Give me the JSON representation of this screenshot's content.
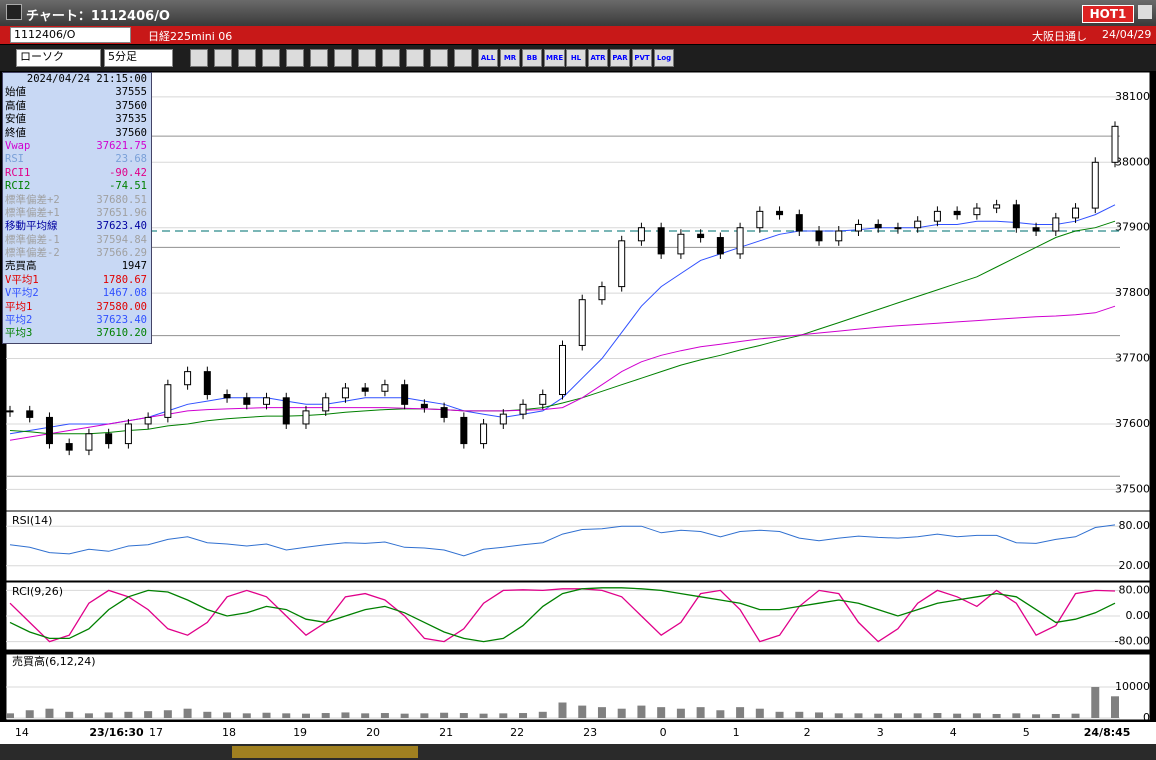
{
  "window": {
    "title": "チャート：1112406/O",
    "hot": "HOT1",
    "symbol": "1112406/O",
    "name": "日経225mini 06",
    "session": "大阪日通し",
    "date": "24/04/29",
    "chart_kind": "ローソク",
    "interval": "5分足",
    "tools": [
      "ALL",
      "MR",
      "BB",
      "MRE",
      "HL",
      "ATR",
      "PAR",
      "PVT",
      "Log"
    ]
  },
  "info_panel": {
    "datetime": "2024/04/24  21:15:00",
    "rows": [
      {
        "label": "始値",
        "value": "37555",
        "color": "#000000"
      },
      {
        "label": "高値",
        "value": "37560",
        "color": "#000000"
      },
      {
        "label": "安値",
        "value": "37535",
        "color": "#000000"
      },
      {
        "label": "終値",
        "value": "37560",
        "color": "#000000"
      },
      {
        "label": "Vwap",
        "value": "37621.75",
        "color": "#d000d0"
      },
      {
        "label": "RSI",
        "value": "23.68",
        "color": "#7aa0d8"
      },
      {
        "label": "RCI1",
        "value": "-90.42",
        "color": "#e0008a"
      },
      {
        "label": "RCI2",
        "value": "-74.51",
        "color": "#008000"
      },
      {
        "label": "標準偏差+2",
        "value": "37680.51",
        "color": "#a0a0a0"
      },
      {
        "label": "標準偏差+1",
        "value": "37651.96",
        "color": "#a0a0a0"
      },
      {
        "label": "移動平均線",
        "value": "37623.40",
        "color": "#0000a0"
      },
      {
        "label": "標準偏差-1",
        "value": "37594.84",
        "color": "#a0a0a0"
      },
      {
        "label": "標準偏差-2",
        "value": "37566.29",
        "color": "#a0a0a0"
      },
      {
        "label": "売買高",
        "value": "1947",
        "color": "#000000"
      },
      {
        "label": "V平均1",
        "value": "1780.67",
        "color": "#e00000"
      },
      {
        "label": "V平均2",
        "value": "1467.08",
        "color": "#3050ff"
      },
      {
        "label": "平均1",
        "value": "37580.00",
        "color": "#e00000"
      },
      {
        "label": "平均2",
        "value": "37623.40",
        "color": "#3050ff"
      },
      {
        "label": "平均3",
        "value": "37610.20",
        "color": "#008000"
      }
    ]
  },
  "chart_data": {
    "type": "candlestick",
    "xticks": [
      {
        "value": 0.6,
        "label": "14"
      },
      {
        "value": 5.4,
        "label": "23/16:30"
      },
      {
        "value": 7.4,
        "label": "17"
      },
      {
        "value": 11.1,
        "label": "18"
      },
      {
        "value": 14.7,
        "label": "19"
      },
      {
        "value": 18.4,
        "label": "20"
      },
      {
        "value": 22.1,
        "label": "21"
      },
      {
        "value": 25.7,
        "label": "22"
      },
      {
        "value": 29.4,
        "label": "23"
      },
      {
        "value": 33.1,
        "label": "0"
      },
      {
        "value": 36.8,
        "label": "1"
      },
      {
        "value": 40.4,
        "label": "2"
      },
      {
        "value": 44.1,
        "label": "3"
      },
      {
        "value": 47.8,
        "label": "4"
      },
      {
        "value": 51.5,
        "label": "5"
      },
      {
        "value": 55.6,
        "label": "24/8:45"
      }
    ],
    "ylim": [
      37470,
      38135
    ],
    "yticks": [
      37500,
      37600,
      37700,
      37800,
      37900,
      38000,
      38100
    ],
    "close": [
      37620,
      37610,
      37570,
      37560,
      37585,
      37570,
      37600,
      37610,
      37660,
      37680,
      37645,
      37640,
      37630,
      37640,
      37600,
      37620,
      37640,
      37655,
      37650,
      37660,
      37630,
      37625,
      37610,
      37570,
      37600,
      37615,
      37630,
      37645,
      37720,
      37790,
      37810,
      37880,
      37900,
      37860,
      37890,
      37885,
      37860,
      37900,
      37925,
      37920,
      37895,
      37880,
      37895,
      37905,
      37900,
      37900,
      37910,
      37925,
      37920,
      37930,
      37935,
      37900,
      37895,
      37915,
      37930,
      38000,
      38055
    ],
    "hlines": [
      {
        "value": 38040,
        "color": "#909090"
      },
      {
        "value": 37895,
        "color": "#2a8a8a",
        "dashed": true
      },
      {
        "value": 37870,
        "color": "#909090"
      },
      {
        "value": 37735,
        "color": "#909090"
      },
      {
        "value": 37520,
        "color": "#909090"
      }
    ],
    "series": [
      {
        "name": "平均2",
        "color": "#3050ff",
        "values": [
          37585,
          37590,
          37595,
          37600,
          37600,
          37600,
          37605,
          37610,
          37620,
          37630,
          37635,
          37640,
          37640,
          37640,
          37635,
          37630,
          37630,
          37635,
          37640,
          37640,
          37640,
          37635,
          37630,
          37620,
          37615,
          37610,
          37615,
          37620,
          37640,
          37670,
          37700,
          37740,
          37780,
          37810,
          37830,
          37850,
          37860,
          37870,
          37880,
          37890,
          37895,
          37895,
          37895,
          37897,
          37900,
          37900,
          37900,
          37905,
          37905,
          37910,
          37910,
          37908,
          37905,
          37905,
          37910,
          37920,
          37935
        ]
      },
      {
        "name": "平均3",
        "color": "#008000",
        "values": [
          37590,
          37588,
          37585,
          37585,
          37585,
          37587,
          37590,
          37592,
          37597,
          37600,
          37605,
          37608,
          37610,
          37612,
          37612,
          37613,
          37615,
          37618,
          37620,
          37622,
          37623,
          37623,
          37622,
          37620,
          37620,
          37620,
          37622,
          37625,
          37632,
          37640,
          37650,
          37660,
          37670,
          37680,
          37690,
          37698,
          37705,
          37713,
          37720,
          37728,
          37735,
          37745,
          37755,
          37765,
          37775,
          37785,
          37795,
          37805,
          37815,
          37825,
          37840,
          37855,
          37870,
          37885,
          37895,
          37900,
          37910
        ]
      },
      {
        "name": "Vwap",
        "color": "#d000d0",
        "values": [
          37575,
          37580,
          37585,
          37590,
          37595,
          37600,
          37605,
          37610,
          37615,
          37620,
          37622,
          37623,
          37624,
          37625,
          37625,
          37625,
          37625,
          37625,
          37625,
          37625,
          37624,
          37623,
          37622,
          37620,
          37620,
          37620,
          37621,
          37622,
          37625,
          37640,
          37660,
          37680,
          37695,
          37705,
          37712,
          37718,
          37722,
          37726,
          37730,
          37733,
          37736,
          37739,
          37742,
          37745,
          37748,
          37750,
          37752,
          37754,
          37756,
          37758,
          37760,
          37762,
          37764,
          37765,
          37767,
          37770,
          37780
        ]
      }
    ],
    "rsi": {
      "title": "RSI(14)",
      "ylim": [
        0,
        100
      ],
      "yticks": [
        {
          "value": 80,
          "label": "80.00"
        },
        {
          "value": 20,
          "label": "20.00"
        }
      ],
      "color": "#3070d0",
      "values": [
        52,
        48,
        40,
        38,
        45,
        42,
        50,
        52,
        60,
        64,
        55,
        53,
        50,
        53,
        44,
        48,
        52,
        55,
        54,
        56,
        48,
        47,
        44,
        35,
        45,
        48,
        52,
        55,
        68,
        75,
        76,
        80,
        80,
        70,
        74,
        72,
        64,
        72,
        74,
        72,
        62,
        58,
        62,
        65,
        63,
        62,
        64,
        68,
        64,
        66,
        66,
        55,
        54,
        60,
        64,
        78,
        82
      ]
    },
    "rci": {
      "title": "RCI(9,26)",
      "ylim": [
        -100,
        100
      ],
      "yticks": [
        {
          "value": 80,
          "label": "80.00"
        },
        {
          "value": 0,
          "label": "0.00"
        },
        {
          "value": -80,
          "label": "-80.00"
        }
      ],
      "series": [
        {
          "name": "RCI1",
          "color": "#e0008a",
          "values": [
            40,
            -20,
            -80,
            -60,
            40,
            80,
            60,
            20,
            -40,
            -60,
            -20,
            60,
            80,
            60,
            0,
            -60,
            -20,
            60,
            70,
            50,
            0,
            -70,
            -80,
            -40,
            40,
            80,
            82,
            80,
            85,
            85,
            80,
            60,
            0,
            -60,
            -20,
            70,
            80,
            20,
            -80,
            -60,
            30,
            80,
            70,
            -20,
            -80,
            -40,
            40,
            80,
            60,
            30,
            80,
            40,
            -60,
            -30,
            70,
            80,
            78
          ]
        },
        {
          "name": "RCI2",
          "color": "#008000",
          "values": [
            -20,
            -50,
            -70,
            -70,
            -40,
            20,
            60,
            80,
            75,
            50,
            20,
            0,
            10,
            30,
            20,
            -10,
            -20,
            0,
            20,
            30,
            10,
            -20,
            -50,
            -70,
            -80,
            -70,
            -30,
            30,
            70,
            85,
            88,
            88,
            85,
            80,
            70,
            60,
            50,
            40,
            20,
            20,
            30,
            40,
            50,
            40,
            20,
            0,
            20,
            40,
            50,
            60,
            70,
            60,
            20,
            -20,
            -10,
            10,
            40
          ]
        }
      ]
    },
    "volume": {
      "title": "売買高(6,12,24)",
      "ylim": [
        0,
        20000
      ],
      "yticks": [
        10000,
        0
      ],
      "color": "#808080",
      "values": [
        1500,
        2500,
        3000,
        2000,
        1500,
        1800,
        2000,
        2200,
        2500,
        3000,
        2000,
        1800,
        1500,
        1700,
        1500,
        1400,
        1600,
        1800,
        1500,
        1600,
        1400,
        1500,
        1700,
        1600,
        1400,
        1500,
        1600,
        2000,
        5000,
        4000,
        3500,
        3000,
        4000,
        3500,
        3000,
        3500,
        2500,
        3500,
        3000,
        2000,
        2000,
        1800,
        1500,
        1500,
        1400,
        1500,
        1500,
        1600,
        1400,
        1500,
        1300,
        1500,
        1200,
        1300,
        1400,
        10000,
        7000
      ]
    }
  }
}
